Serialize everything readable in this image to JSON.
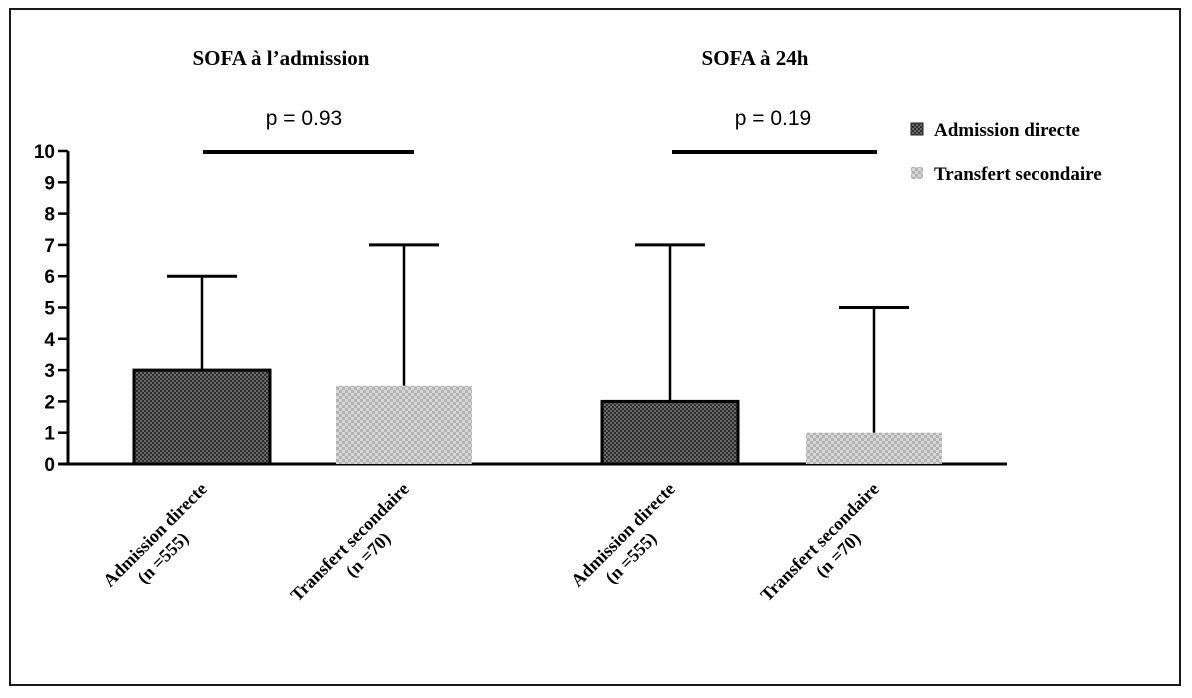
{
  "colors": {
    "bar_dark": "#3a3a3a",
    "bar_light": "#bdbdbd",
    "axis": "#000000",
    "frame": "#1a1a1a"
  },
  "chart_data": {
    "type": "bar",
    "panels": [
      {
        "title": "SOFA à l’admission",
        "p_value": "p = 0.93",
        "bars": [
          {
            "series": "Admission directe",
            "label_line1": "Admission directe",
            "label_line2": "(n =555)",
            "value": 3,
            "error_upper": 6
          },
          {
            "series": "Transfert secondaire",
            "label_line1": "Transfert secondaire",
            "label_line2": "(n =70)",
            "value": 2.5,
            "error_upper": 7
          }
        ]
      },
      {
        "title": "SOFA à 24h",
        "p_value": "p = 0.19",
        "bars": [
          {
            "series": "Admission directe",
            "label_line1": "Admission directe",
            "label_line2": "(n =555)",
            "value": 2,
            "error_upper": 7
          },
          {
            "series": "Transfert secondaire",
            "label_line1": "Transfert secondaire",
            "label_line2": "(n =70)",
            "value": 1,
            "error_upper": 5
          }
        ]
      }
    ],
    "series": [
      {
        "name": "Admission directe",
        "pattern": "dark-checker"
      },
      {
        "name": "Transfert secondaire",
        "pattern": "light-checker"
      }
    ],
    "y_ticks": [
      "0",
      "1",
      "2",
      "3",
      "4",
      "5",
      "6",
      "7",
      "8",
      "9",
      "10"
    ],
    "ylim": [
      0,
      10
    ],
    "grid": false,
    "legend_position": "top-right"
  }
}
